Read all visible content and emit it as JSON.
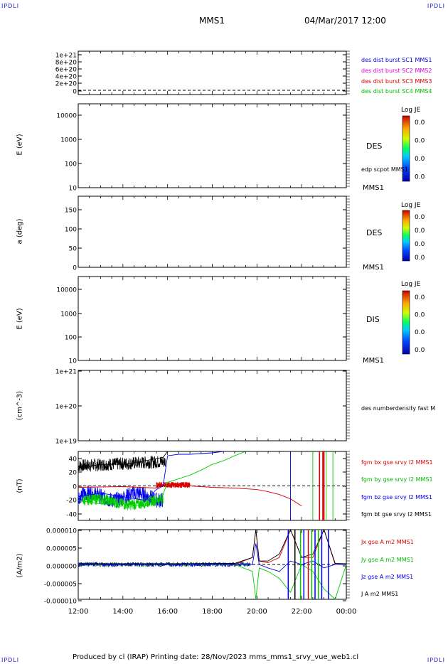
{
  "header": {
    "corner_tl": "IPDLI",
    "corner_tr": "IPDLI",
    "corner_bl": "IPDLI",
    "corner_br": "IPDLI",
    "spacecraft": "MMS1",
    "datetime": "04/Mar/2017 12:00"
  },
  "footer": {
    "text": "Produced by cl (IRAP)   Printing date: 28/Nov/2023   mms_mms1_srvy_vue_web1.cl"
  },
  "colors": {
    "blue": "#0000ee",
    "magenta": "#dd00dd",
    "red": "#dd0000",
    "green": "#00cc00",
    "black": "#000000"
  },
  "panels": {
    "p1": {
      "ticks": [
        "1e+21",
        "8e+20",
        "6e+20",
        "4e+20",
        "2e+20",
        "0"
      ],
      "legend": [
        "des dist burst SC1 MMS1",
        "des dist burst SC2 MMS2",
        "des dist burst SC3 MMS3",
        "des dist burst SC4 MMS4"
      ]
    },
    "p2": {
      "ylabel": "E (eV)",
      "ticks": [
        "10000",
        "1000",
        "100",
        "10"
      ],
      "species": "DES",
      "extra": "edp scpot MMS1",
      "sc": "MMS1",
      "cbar_title": "Log JE",
      "cbar_ticks": [
        "0.0",
        "0.0",
        "0.0",
        "0.0"
      ]
    },
    "p3": {
      "ylabel": "a (deg)",
      "ticks": [
        "150",
        "100",
        "50",
        "0"
      ],
      "species": "DES",
      "sc": "MMS1",
      "cbar_title": "Log JE",
      "cbar_ticks": [
        "0.0",
        "0.0",
        "0.0",
        "0.0"
      ]
    },
    "p4": {
      "ylabel": "E (eV)",
      "ticks": [
        "10000",
        "1000",
        "100",
        "10"
      ],
      "species": "DIS",
      "sc": "MMS1",
      "cbar_title": "Log JE",
      "cbar_ticks": [
        "0.0",
        "0.0",
        "0.0",
        "0.0"
      ]
    },
    "p5": {
      "ylabel": "(cm^-3)",
      "ticks": [
        "1e+21",
        "1e+20",
        "1e+19"
      ],
      "label": "des numberdensity fast M"
    },
    "p6": {
      "ylabel": "(nT)",
      "ticks": [
        "40",
        "20",
        "0",
        "-20",
        "-40"
      ],
      "legend": [
        "fgm bx gse srvy l2 MMS1",
        "fgm by gse srvy l2 MMS1",
        "fgm bz gse srvy l2 MMS1",
        "fgm bt gse srvy l2 MMS1"
      ]
    },
    "p7": {
      "ylabel": "(A/m2)",
      "ticks": [
        "0.000010",
        "0.000005",
        "0.000000",
        "-0.000005",
        "-0.000010"
      ],
      "legend": [
        "Jx gse A m2 MMS1",
        "Jy gse A m2 MMS1",
        "Jz gse A m2 MMS1",
        "J A m2 MMS1"
      ]
    }
  },
  "xaxis": {
    "ticks": [
      "12:00",
      "14:00",
      "16:00",
      "18:00",
      "20:00",
      "22:00",
      "00:00"
    ]
  },
  "chart_data": [
    {
      "type": "line",
      "title": "",
      "ylabel": "",
      "ylim": [
        0,
        1.05e+21
      ],
      "series": [
        {
          "name": "des dist burst SC1 MMS1",
          "values": []
        },
        {
          "name": "des dist burst SC2 MMS2",
          "values": []
        },
        {
          "name": "des dist burst SC3 MMS3",
          "values": []
        },
        {
          "name": "des dist burst SC4 MMS4",
          "values": []
        }
      ]
    },
    {
      "type": "heatmap",
      "ylabel": "E (eV)",
      "ylim": [
        10,
        20000
      ],
      "yscale": "log",
      "colorbar": "Log JE"
    },
    {
      "type": "heatmap",
      "ylabel": "a (deg)",
      "ylim": [
        0,
        180
      ],
      "colorbar": "Log JE"
    },
    {
      "type": "heatmap",
      "ylabel": "E (eV)",
      "ylim": [
        10,
        20000
      ],
      "yscale": "log",
      "colorbar": "Log JE"
    },
    {
      "type": "line",
      "ylabel": "(cm^-3)",
      "ylim": [
        1e+19,
        1e+21
      ],
      "yscale": "log",
      "series": [
        {
          "name": "des numberdensity fast M",
          "values": []
        }
      ]
    },
    {
      "type": "line",
      "ylabel": "(nT)",
      "ylim": [
        -48,
        48
      ],
      "x_unit": "hours since 12:00",
      "series": [
        {
          "name": "fgm bx gse srvy l2 MMS1",
          "x": [
            0,
            2,
            3.5,
            4,
            4.5,
            5,
            5.5,
            6,
            7,
            8,
            8.5,
            9,
            9.5,
            10.0
          ],
          "y": [
            -2,
            -1,
            -3,
            3,
            2,
            0,
            -1,
            -2,
            -3,
            -5,
            -8,
            -12,
            -18,
            -28
          ]
        },
        {
          "name": "fgm by gse srvy l2 MMS1",
          "x": [
            0,
            1,
            2,
            3,
            3.7,
            4,
            4.5,
            5,
            5.5,
            6,
            6.5,
            7,
            7.5
          ],
          "y": [
            -20,
            -25,
            -25,
            -28,
            -20,
            5,
            10,
            15,
            22,
            30,
            35,
            42,
            48
          ]
        },
        {
          "name": "fgm bz gse srvy l2 MMS1",
          "x": [
            0,
            1,
            2,
            3,
            3.5,
            3.8,
            4,
            4.5,
            5,
            5.5,
            6,
            6.5
          ],
          "y": [
            -15,
            -10,
            -15,
            -20,
            -5,
            0,
            42,
            44,
            44,
            45,
            46,
            48
          ]
        },
        {
          "name": "fgm bt gse srvy l2 MMS1",
          "x": [
            0,
            1,
            2,
            3,
            3.5,
            3.8,
            4,
            4.5,
            5,
            5.5,
            6
          ],
          "y": [
            25,
            30,
            30,
            35,
            38,
            40,
            48,
            48,
            48,
            48,
            48
          ]
        }
      ]
    },
    {
      "type": "line",
      "ylabel": "(A/m2)",
      "ylim": [
        -1e-05,
        1e-05
      ],
      "x_unit": "hours since 12:00",
      "series": [
        {
          "name": "Jx gse A m2 MMS1",
          "x": [
            0,
            4,
            7,
            7.8,
            7.95,
            8.1,
            8.5,
            9,
            9.5,
            10,
            10.5,
            11,
            11.5,
            12
          ],
          "y": [
            0,
            0,
            0,
            2e-06,
            1e-05,
            1e-06,
            5e-07,
            2e-06,
            1e-05,
            2e-06,
            2e-06,
            1e-05,
            0,
            0
          ]
        },
        {
          "name": "Jy gse A m2 MMS1",
          "x": [
            0,
            4,
            7,
            7.8,
            7.95,
            8.1,
            8.5,
            9,
            9.5,
            10,
            10.5,
            11,
            11.5,
            12
          ],
          "y": [
            0,
            0,
            0,
            -2e-06,
            -1e-05,
            -1e-06,
            -2e-06,
            -4e-06,
            -8e-06,
            0,
            -2e-06,
            -7e-06,
            -1e-05,
            0
          ]
        },
        {
          "name": "Jz gse A m2 MMS1",
          "x": [
            0,
            4,
            7,
            7.8,
            7.95,
            8.1,
            8.5,
            9,
            9.5,
            10,
            10.5,
            11,
            11.5,
            12
          ],
          "y": [
            0,
            0,
            0,
            0,
            6e-06,
            0,
            -1e-06,
            -2e-06,
            1e-06,
            0,
            1e-06,
            -1e-06,
            0,
            0
          ]
        },
        {
          "name": "J A m2 MMS1",
          "x": [
            0,
            4,
            7,
            7.8,
            7.95,
            8.1,
            8.5,
            9,
            9.5,
            10,
            10.5,
            11,
            11.5,
            12
          ],
          "y": [
            2e-07,
            2e-07,
            3e-07,
            2e-06,
            1e-05,
            1e-06,
            1e-06,
            3e-06,
            1e-05,
            2e-06,
            3e-06,
            1e-05,
            3e-07,
            2e-07
          ]
        }
      ]
    }
  ]
}
